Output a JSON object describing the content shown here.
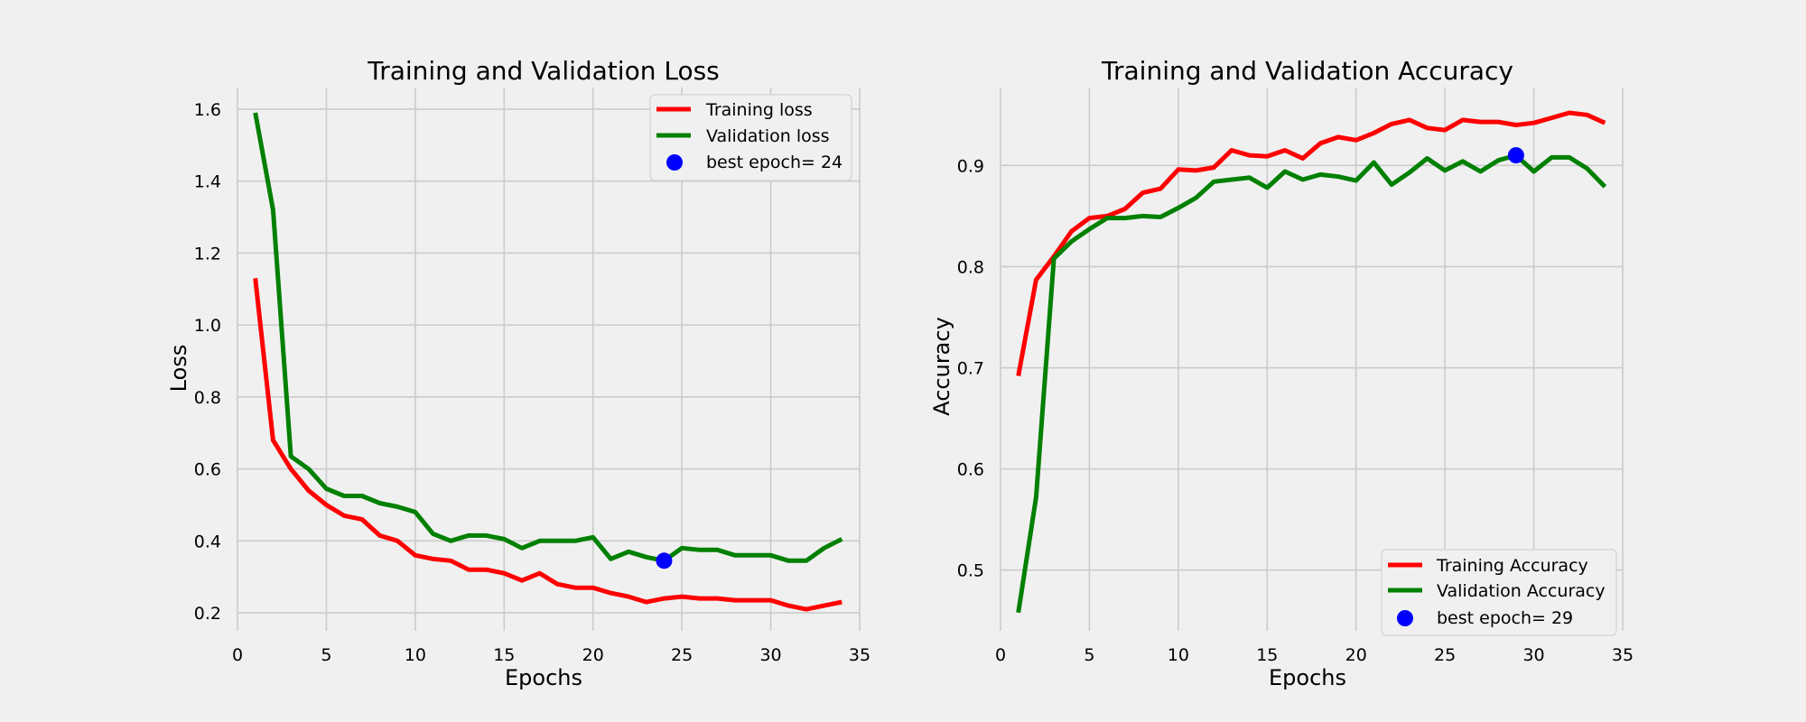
{
  "colors": {
    "background": "#f0f0f0",
    "grid": "#cbcbcb",
    "training": "#ff0000",
    "validation": "#008000",
    "best_marker": "#0000ff"
  },
  "chart_data": [
    {
      "type": "line",
      "title": "Training and Validation Loss",
      "xlabel": "Epochs",
      "ylabel": "Loss",
      "xlim": [
        0,
        35
      ],
      "ylim": [
        0.15,
        1.66
      ],
      "xticks": [
        0,
        5,
        10,
        15,
        20,
        25,
        30,
        35
      ],
      "yticks": [
        0.2,
        0.4,
        0.6,
        0.8,
        1.0,
        1.2,
        1.4,
        1.6
      ],
      "ytick_labels": [
        "0.2",
        "0.4",
        "0.6",
        "0.8",
        "1.0",
        "1.2",
        "1.4",
        "1.6"
      ],
      "grid": true,
      "legend_position": "top-right",
      "x": [
        1,
        2,
        3,
        4,
        5,
        6,
        7,
        8,
        9,
        10,
        11,
        12,
        13,
        14,
        15,
        16,
        17,
        18,
        19,
        20,
        21,
        22,
        23,
        24,
        25,
        26,
        27,
        28,
        29,
        30,
        31,
        32,
        33,
        34
      ],
      "series": [
        {
          "name": "Training loss",
          "color": "#ff0000",
          "values": [
            1.13,
            0.68,
            0.6,
            0.54,
            0.5,
            0.47,
            0.46,
            0.415,
            0.4,
            0.36,
            0.35,
            0.345,
            0.32,
            0.32,
            0.31,
            0.29,
            0.31,
            0.28,
            0.27,
            0.27,
            0.255,
            0.245,
            0.23,
            0.24,
            0.245,
            0.24,
            0.24,
            0.235,
            0.235,
            0.235,
            0.22,
            0.21,
            0.22,
            0.23
          ]
        },
        {
          "name": "Validation loss",
          "color": "#008000",
          "values": [
            1.59,
            1.32,
            0.635,
            0.6,
            0.545,
            0.525,
            0.525,
            0.505,
            0.495,
            0.48,
            0.42,
            0.4,
            0.415,
            0.415,
            0.405,
            0.38,
            0.4,
            0.4,
            0.4,
            0.41,
            0.35,
            0.37,
            0.355,
            0.345,
            0.38,
            0.375,
            0.375,
            0.36,
            0.36,
            0.36,
            0.345,
            0.345,
            0.38,
            0.405
          ]
        }
      ],
      "best": {
        "label": "best epoch= 24",
        "x": 24,
        "y": 0.345
      }
    },
    {
      "type": "line",
      "title": "Training and Validation Accuracy",
      "xlabel": "Epochs",
      "ylabel": "Accuracy",
      "xlim": [
        0,
        35
      ],
      "ylim": [
        0.44,
        0.977
      ],
      "xticks": [
        0,
        5,
        10,
        15,
        20,
        25,
        30,
        35
      ],
      "yticks": [
        0.5,
        0.6,
        0.7,
        0.8,
        0.9
      ],
      "ytick_labels": [
        "0.5",
        "0.6",
        "0.7",
        "0.8",
        "0.9"
      ],
      "grid": true,
      "legend_position": "bottom-right",
      "x": [
        1,
        2,
        3,
        4,
        5,
        6,
        7,
        8,
        9,
        10,
        11,
        12,
        13,
        14,
        15,
        16,
        17,
        18,
        19,
        20,
        21,
        22,
        23,
        24,
        25,
        26,
        27,
        28,
        29,
        30,
        31,
        32,
        33,
        34
      ],
      "series": [
        {
          "name": "Training Accuracy",
          "color": "#ff0000",
          "values": [
            0.692,
            0.787,
            0.81,
            0.835,
            0.848,
            0.85,
            0.857,
            0.873,
            0.877,
            0.896,
            0.895,
            0.898,
            0.915,
            0.91,
            0.909,
            0.915,
            0.907,
            0.922,
            0.928,
            0.925,
            0.932,
            0.941,
            0.945,
            0.937,
            0.935,
            0.945,
            0.943,
            0.943,
            0.94,
            0.942,
            0.947,
            0.952,
            0.95,
            0.942
          ]
        },
        {
          "name": "Validation Accuracy",
          "color": "#008000",
          "values": [
            0.458,
            0.572,
            0.808,
            0.825,
            0.837,
            0.848,
            0.848,
            0.85,
            0.849,
            0.858,
            0.868,
            0.884,
            0.886,
            0.888,
            0.878,
            0.894,
            0.886,
            0.891,
            0.889,
            0.885,
            0.903,
            0.881,
            0.893,
            0.907,
            0.895,
            0.904,
            0.894,
            0.905,
            0.91,
            0.894,
            0.908,
            0.908,
            0.897,
            0.879
          ]
        }
      ],
      "best": {
        "label": "best epoch= 29",
        "x": 29,
        "y": 0.91
      }
    }
  ]
}
